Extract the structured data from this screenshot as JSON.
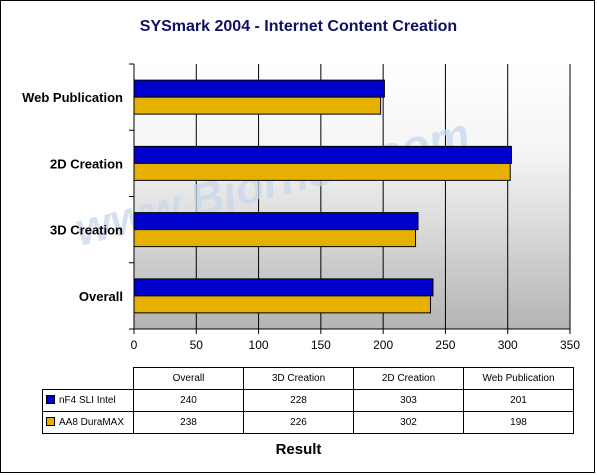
{
  "colors": {
    "series1": "#0000cc",
    "series2": "#e6b000",
    "title": "#101066",
    "watermark": "#c8d8ec"
  },
  "watermark": "www.Bjorn3D.com",
  "chart_data": {
    "type": "bar",
    "orientation": "horizontal",
    "title": "SYSmark 2004 - Internet Content Creation",
    "xlabel": "Result",
    "ylabel": "",
    "categories": [
      "Overall",
      "3D Creation",
      "2D Creation",
      "Web Publication"
    ],
    "series": [
      {
        "name": "nF4 SLI Intel",
        "values": [
          240,
          228,
          303,
          201
        ]
      },
      {
        "name": "AA8 DuraMAX",
        "values": [
          238,
          226,
          302,
          198
        ]
      }
    ],
    "xlim": [
      0,
      350
    ],
    "xticks": [
      0,
      50,
      100,
      150,
      200,
      250,
      300,
      350
    ],
    "grid": true,
    "legend": "data-table"
  }
}
